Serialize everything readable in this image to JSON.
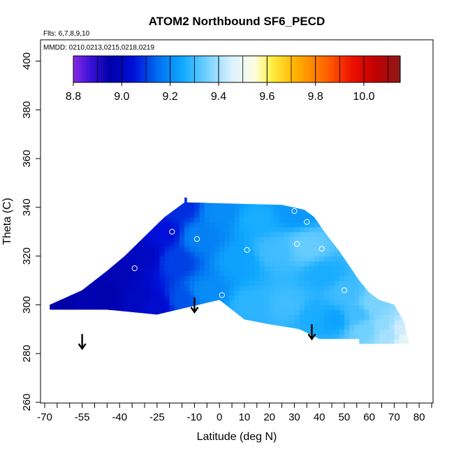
{
  "chart_data": {
    "type": "heatmap",
    "title": "ATOM2 Northbound SF6_PECD",
    "annotations": {
      "flights": "Flts: 6,7,8,9,10",
      "dates": "MMDD: 0210,0213,0215,0218,0219"
    },
    "xlabel": "Latitude (deg N)",
    "ylabel": "Theta (C)",
    "xlim": [
      -70,
      85
    ],
    "ylim": [
      260,
      405
    ],
    "x_ticks_major": [
      -70,
      -55,
      -40,
      -25,
      -10,
      0,
      10,
      20,
      30,
      40,
      50,
      60,
      70,
      80
    ],
    "x_ticks_minor": [
      -65,
      -60,
      -50,
      -45,
      -35,
      -30,
      -20,
      -15,
      -5,
      5,
      15,
      25,
      35,
      45,
      55,
      65,
      75,
      85
    ],
    "y_ticks": [
      260,
      280,
      300,
      320,
      340,
      360,
      380,
      400
    ],
    "colorbar": {
      "min": 8.8,
      "max": 10.15,
      "ticks": [
        8.8,
        9.0,
        9.2,
        9.4,
        9.6,
        9.8,
        10.0
      ],
      "stops": [
        {
          "value": 8.8,
          "color": "#8a2be2"
        },
        {
          "value": 8.87,
          "color": "#3a10d8"
        },
        {
          "value": 8.95,
          "color": "#0000a8"
        },
        {
          "value": 9.05,
          "color": "#0010d8"
        },
        {
          "value": 9.15,
          "color": "#0070f0"
        },
        {
          "value": 9.25,
          "color": "#10a8ff"
        },
        {
          "value": 9.35,
          "color": "#70d0ff"
        },
        {
          "value": 9.45,
          "color": "#d8f0ff"
        },
        {
          "value": 9.55,
          "color": "#ffffe0"
        },
        {
          "value": 9.62,
          "color": "#ffee40"
        },
        {
          "value": 9.72,
          "color": "#ffb000"
        },
        {
          "value": 9.85,
          "color": "#ff6000"
        },
        {
          "value": 9.95,
          "color": "#ee1000"
        },
        {
          "value": 10.05,
          "color": "#c00000"
        },
        {
          "value": 10.15,
          "color": "#8b1a1a"
        }
      ]
    },
    "field": {
      "lat_min": -68,
      "lat_max": 76,
      "top_boundary": [
        [
          -68,
          300
        ],
        [
          -55,
          306
        ],
        [
          -45,
          314
        ],
        [
          -38,
          320
        ],
        [
          -25,
          333
        ],
        [
          -22,
          336
        ],
        [
          -18,
          339
        ],
        [
          -14,
          342
        ],
        [
          -14,
          344
        ],
        [
          -13,
          344
        ],
        [
          -13,
          342
        ],
        [
          25,
          341
        ],
        [
          34,
          339
        ],
        [
          38,
          336
        ],
        [
          42,
          330
        ],
        [
          48,
          322
        ],
        [
          52,
          316
        ],
        [
          56,
          310
        ],
        [
          60,
          305
        ],
        [
          64,
          302
        ],
        [
          70,
          300
        ],
        [
          74,
          293
        ],
        [
          76,
          284
        ]
      ],
      "bottom_boundary": [
        [
          76,
          284
        ],
        [
          56,
          284
        ],
        [
          56,
          286
        ],
        [
          40,
          286
        ],
        [
          32,
          290
        ],
        [
          20,
          292
        ],
        [
          10,
          294
        ],
        [
          0,
          302
        ],
        [
          -25,
          296
        ],
        [
          -45,
          298
        ],
        [
          -68,
          298
        ]
      ],
      "value_nodes": [
        {
          "lat": -62,
          "theta": 300,
          "value": 8.95
        },
        {
          "lat": -55,
          "theta": 300,
          "value": 8.97
        },
        {
          "lat": -45,
          "theta": 304,
          "value": 8.96
        },
        {
          "lat": -40,
          "theta": 314,
          "value": 8.98
        },
        {
          "lat": -33,
          "theta": 302,
          "value": 9.0
        },
        {
          "lat": -30,
          "theta": 320,
          "value": 9.0
        },
        {
          "lat": -25,
          "theta": 300,
          "value": 9.03
        },
        {
          "lat": -22,
          "theta": 330,
          "value": 9.05
        },
        {
          "lat": -18,
          "theta": 318,
          "value": 9.1
        },
        {
          "lat": -15,
          "theta": 340,
          "value": 9.08
        },
        {
          "lat": -15,
          "theta": 302,
          "value": 9.12
        },
        {
          "lat": -8,
          "theta": 328,
          "value": 9.18
        },
        {
          "lat": -5,
          "theta": 305,
          "value": 9.2
        },
        {
          "lat": 0,
          "theta": 338,
          "value": 9.2
        },
        {
          "lat": 8,
          "theta": 318,
          "value": 9.24
        },
        {
          "lat": 12,
          "theta": 300,
          "value": 9.28
        },
        {
          "lat": 15,
          "theta": 335,
          "value": 9.26
        },
        {
          "lat": 22,
          "theta": 322,
          "value": 9.3
        },
        {
          "lat": 28,
          "theta": 300,
          "value": 9.3
        },
        {
          "lat": 30,
          "theta": 338,
          "value": 9.22
        },
        {
          "lat": 35,
          "theta": 324,
          "value": 9.34
        },
        {
          "lat": 38,
          "theta": 296,
          "value": 9.26
        },
        {
          "lat": 42,
          "theta": 312,
          "value": 9.26
        },
        {
          "lat": 46,
          "theta": 294,
          "value": 9.24
        },
        {
          "lat": 50,
          "theta": 305,
          "value": 9.3
        },
        {
          "lat": 55,
          "theta": 296,
          "value": 9.3
        },
        {
          "lat": 58,
          "theta": 290,
          "value": 9.35
        },
        {
          "lat": 62,
          "theta": 300,
          "value": 9.36
        },
        {
          "lat": 66,
          "theta": 292,
          "value": 9.38
        },
        {
          "lat": 68,
          "theta": 288,
          "value": 9.4
        },
        {
          "lat": 72,
          "theta": 290,
          "value": 9.44
        },
        {
          "lat": 75,
          "theta": 286,
          "value": 9.48
        }
      ]
    },
    "sample_points": [
      {
        "lat": -34,
        "theta": 315
      },
      {
        "lat": -19,
        "theta": 330
      },
      {
        "lat": -9,
        "theta": 327
      },
      {
        "lat": 1,
        "theta": 304
      },
      {
        "lat": 11,
        "theta": 322.5
      },
      {
        "lat": 30,
        "theta": 338.5
      },
      {
        "lat": 31,
        "theta": 325
      },
      {
        "lat": 35,
        "theta": 334
      },
      {
        "lat": 41,
        "theta": 323
      },
      {
        "lat": 50,
        "theta": 306
      }
    ],
    "arrows": [
      {
        "lat": -55,
        "theta_top": 288,
        "theta_tip": 282
      },
      {
        "lat": -10,
        "theta_top": 303,
        "theta_tip": 297
      },
      {
        "lat": 37,
        "theta_top": 292,
        "theta_tip": 286
      }
    ]
  }
}
